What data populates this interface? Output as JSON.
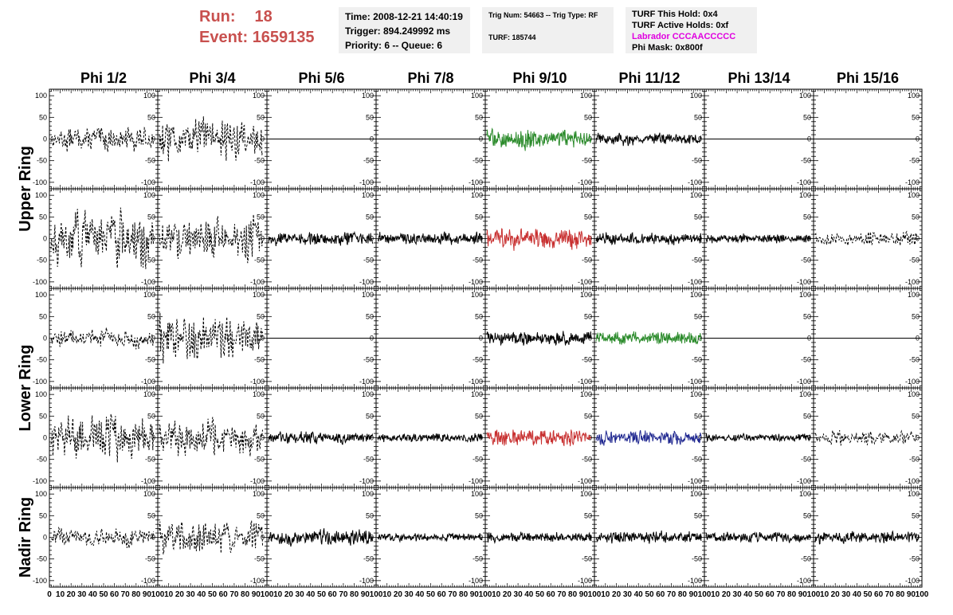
{
  "header": {
    "run_label": "Run:",
    "run_value": "18",
    "event_label": "Event:",
    "event_value": "1659135",
    "time_line": "Time: 2008-12-21 14:40:19",
    "trigger_line": "Trigger: 894.249992 ms",
    "priority_line": "Priority: 6 -- Queue: 6",
    "trig_line": "Trig Num: 54663 -- Trig Type: RF",
    "turf_line": "TURF: 185744",
    "hold_line": "TURF This Hold: 0x4",
    "active_line": "TURF Active Holds: 0xf",
    "labrador_line": "Labrador CCCAACCCCC",
    "phimask_line": "Phi Mask: 0x800f",
    "labrador_color": "#e000e0"
  },
  "chart_data": {
    "type": "line",
    "columns": [
      "Phi 1/2",
      "Phi 3/4",
      "Phi 5/6",
      "Phi 7/8",
      "Phi 9/10",
      "Phi 11/12",
      "Phi 13/14",
      "Phi 15/16"
    ],
    "rings": [
      "Upper Ring",
      "Lower Ring",
      "Nadir Ring"
    ],
    "ylim": [
      -115,
      115
    ],
    "yticks": [
      -100,
      -50,
      0,
      50,
      100
    ],
    "xlim": [
      0,
      100
    ],
    "xticks": [
      0,
      10,
      20,
      30,
      40,
      50,
      60,
      70,
      80,
      90,
      100
    ],
    "grid": false,
    "series_colors": {
      "black": "#000000",
      "green": "#2a8a2a",
      "red": "#c83030",
      "blue": "#202890"
    },
    "panels": [
      {
        "row": 0,
        "col": 0,
        "style": "dashed",
        "amp": 28,
        "color": "black"
      },
      {
        "row": 0,
        "col": 1,
        "style": "dashed",
        "amp": 48,
        "color": "black"
      },
      {
        "row": 0,
        "col": 2,
        "style": "flat",
        "amp": 0,
        "color": "black"
      },
      {
        "row": 0,
        "col": 3,
        "style": "flat",
        "amp": 0,
        "color": "black"
      },
      {
        "row": 0,
        "col": 4,
        "style": "solid",
        "amp": 22,
        "color": "green"
      },
      {
        "row": 0,
        "col": 5,
        "style": "solid",
        "amp": 14,
        "color": "black"
      },
      {
        "row": 0,
        "col": 6,
        "style": "flat",
        "amp": 0,
        "color": "black"
      },
      {
        "row": 0,
        "col": 7,
        "style": "flat",
        "amp": 0,
        "color": "black"
      },
      {
        "row": 1,
        "col": 0,
        "style": "dashed",
        "amp": 65,
        "color": "black"
      },
      {
        "row": 1,
        "col": 1,
        "style": "dashed",
        "amp": 50,
        "color": "black"
      },
      {
        "row": 1,
        "col": 2,
        "style": "solid",
        "amp": 16,
        "color": "black"
      },
      {
        "row": 1,
        "col": 3,
        "style": "solid",
        "amp": 14,
        "color": "black"
      },
      {
        "row": 1,
        "col": 4,
        "style": "solid",
        "amp": 24,
        "color": "red"
      },
      {
        "row": 1,
        "col": 5,
        "style": "solid",
        "amp": 14,
        "color": "black"
      },
      {
        "row": 1,
        "col": 6,
        "style": "solid",
        "amp": 10,
        "color": "black"
      },
      {
        "row": 1,
        "col": 7,
        "style": "dashed",
        "amp": 16,
        "color": "black"
      },
      {
        "row": 2,
        "col": 0,
        "style": "dashed",
        "amp": 22,
        "color": "black"
      },
      {
        "row": 2,
        "col": 1,
        "style": "dashed",
        "amp": 55,
        "color": "black"
      },
      {
        "row": 2,
        "col": 2,
        "style": "flat",
        "amp": 0,
        "color": "black"
      },
      {
        "row": 2,
        "col": 3,
        "style": "flat",
        "amp": 0,
        "color": "black"
      },
      {
        "row": 2,
        "col": 4,
        "style": "solid",
        "amp": 16,
        "color": "black"
      },
      {
        "row": 2,
        "col": 5,
        "style": "solid",
        "amp": 16,
        "color": "green"
      },
      {
        "row": 2,
        "col": 6,
        "style": "flat",
        "amp": 0,
        "color": "black"
      },
      {
        "row": 2,
        "col": 7,
        "style": "flat",
        "amp": 0,
        "color": "black"
      },
      {
        "row": 3,
        "col": 0,
        "style": "dashed",
        "amp": 55,
        "color": "black"
      },
      {
        "row": 3,
        "col": 1,
        "style": "dashed",
        "amp": 42,
        "color": "black"
      },
      {
        "row": 3,
        "col": 2,
        "style": "solid",
        "amp": 14,
        "color": "black"
      },
      {
        "row": 3,
        "col": 3,
        "style": "solid",
        "amp": 10,
        "color": "black"
      },
      {
        "row": 3,
        "col": 4,
        "style": "solid",
        "amp": 20,
        "color": "red"
      },
      {
        "row": 3,
        "col": 5,
        "style": "solid",
        "amp": 16,
        "color": "blue"
      },
      {
        "row": 3,
        "col": 6,
        "style": "solid",
        "amp": 9,
        "color": "black"
      },
      {
        "row": 3,
        "col": 7,
        "style": "dashed",
        "amp": 16,
        "color": "black"
      },
      {
        "row": 4,
        "col": 0,
        "style": "dashed",
        "amp": 22,
        "color": "black"
      },
      {
        "row": 4,
        "col": 1,
        "style": "dashed",
        "amp": 40,
        "color": "black"
      },
      {
        "row": 4,
        "col": 2,
        "style": "solid",
        "amp": 18,
        "color": "black"
      },
      {
        "row": 4,
        "col": 3,
        "style": "solid",
        "amp": 10,
        "color": "black"
      },
      {
        "row": 4,
        "col": 4,
        "style": "solid",
        "amp": 12,
        "color": "black"
      },
      {
        "row": 4,
        "col": 5,
        "style": "solid",
        "amp": 14,
        "color": "black"
      },
      {
        "row": 4,
        "col": 6,
        "style": "solid",
        "amp": 12,
        "color": "black"
      },
      {
        "row": 4,
        "col": 7,
        "style": "solid",
        "amp": 14,
        "color": "black"
      }
    ]
  }
}
